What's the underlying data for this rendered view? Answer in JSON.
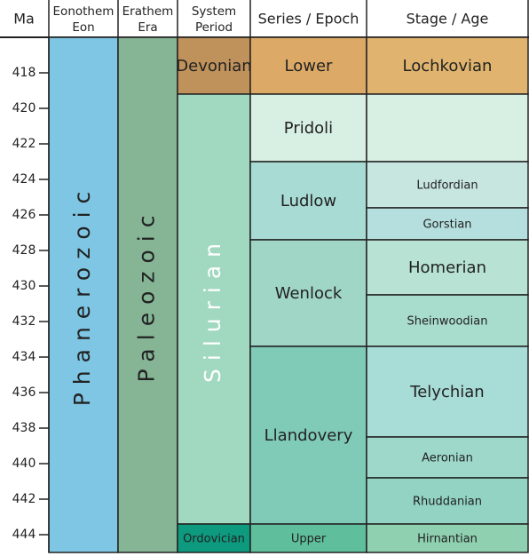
{
  "chart_data": {
    "type": "timescale",
    "axis_label": "Ma",
    "ylim": [
      416,
      445
    ],
    "yticks": [
      418,
      420,
      422,
      424,
      426,
      428,
      430,
      432,
      434,
      436,
      438,
      440,
      442,
      444
    ],
    "columns": [
      {
        "header": [
          "Eonothem",
          "Eon"
        ],
        "units": [
          {
            "name": "Phanerozoic",
            "start": 416,
            "end": 445,
            "color": "#7ec6e4"
          }
        ]
      },
      {
        "header": [
          "Erathem",
          "Era"
        ],
        "units": [
          {
            "name": "Paleozoic",
            "start": 416,
            "end": 445,
            "color": "#86b596"
          }
        ]
      },
      {
        "header": [
          "System",
          "Period"
        ],
        "units": [
          {
            "name": "Devonian",
            "start": 416,
            "end": 419.2,
            "color": "#bf915b"
          },
          {
            "name": "Silurian",
            "start": 419.2,
            "end": 443.4,
            "color": "#a0d8c0"
          },
          {
            "name": "Ordovician",
            "start": 443.4,
            "end": 445,
            "color": "#0d9a7e"
          }
        ]
      },
      {
        "header": [
          "Series / Epoch"
        ],
        "units": [
          {
            "name": "Lower",
            "start": 416,
            "end": 419.2,
            "color": "#dcaa66"
          },
          {
            "name": "Pridoli",
            "start": 419.2,
            "end": 423,
            "color": "#d8efe3"
          },
          {
            "name": "Ludlow",
            "start": 423,
            "end": 427.4,
            "color": "#a8dbd3"
          },
          {
            "name": "Wenlock",
            "start": 427.4,
            "end": 433.4,
            "color": "#a0d6c6"
          },
          {
            "name": "Llandovery",
            "start": 433.4,
            "end": 443.4,
            "color": "#80cbb8"
          },
          {
            "name": "Upper",
            "start": 443.4,
            "end": 445,
            "color": "#5fbf9c"
          }
        ]
      },
      {
        "header": [
          "Stage / Age"
        ],
        "units": [
          {
            "name": "Lochkovian",
            "start": 416,
            "end": 419.2,
            "color": "#e0b46e"
          },
          {
            "name": null,
            "start": 419.2,
            "end": 423,
            "color": "#d8efe3"
          },
          {
            "name": "Ludfordian",
            "start": 423,
            "end": 425.6,
            "color": "#c8e6e0"
          },
          {
            "name": "Gorstian",
            "start": 425.6,
            "end": 427.4,
            "color": "#b5dfde"
          },
          {
            "name": "Homerian",
            "start": 427.4,
            "end": 430.5,
            "color": "#b7e2d4"
          },
          {
            "name": "Sheinwoodian",
            "start": 430.5,
            "end": 433.4,
            "color": "#a8dccc"
          },
          {
            "name": "Telychian",
            "start": 433.4,
            "end": 438.5,
            "color": "#a8dcd6"
          },
          {
            "name": "Aeronian",
            "start": 438.5,
            "end": 440.8,
            "color": "#9dd8cb"
          },
          {
            "name": "Rhuddanian",
            "start": 440.8,
            "end": 443.4,
            "color": "#92d3c4"
          },
          {
            "name": "Hirnantian",
            "start": 443.4,
            "end": 445,
            "color": "#8fd0b0"
          }
        ]
      }
    ]
  }
}
